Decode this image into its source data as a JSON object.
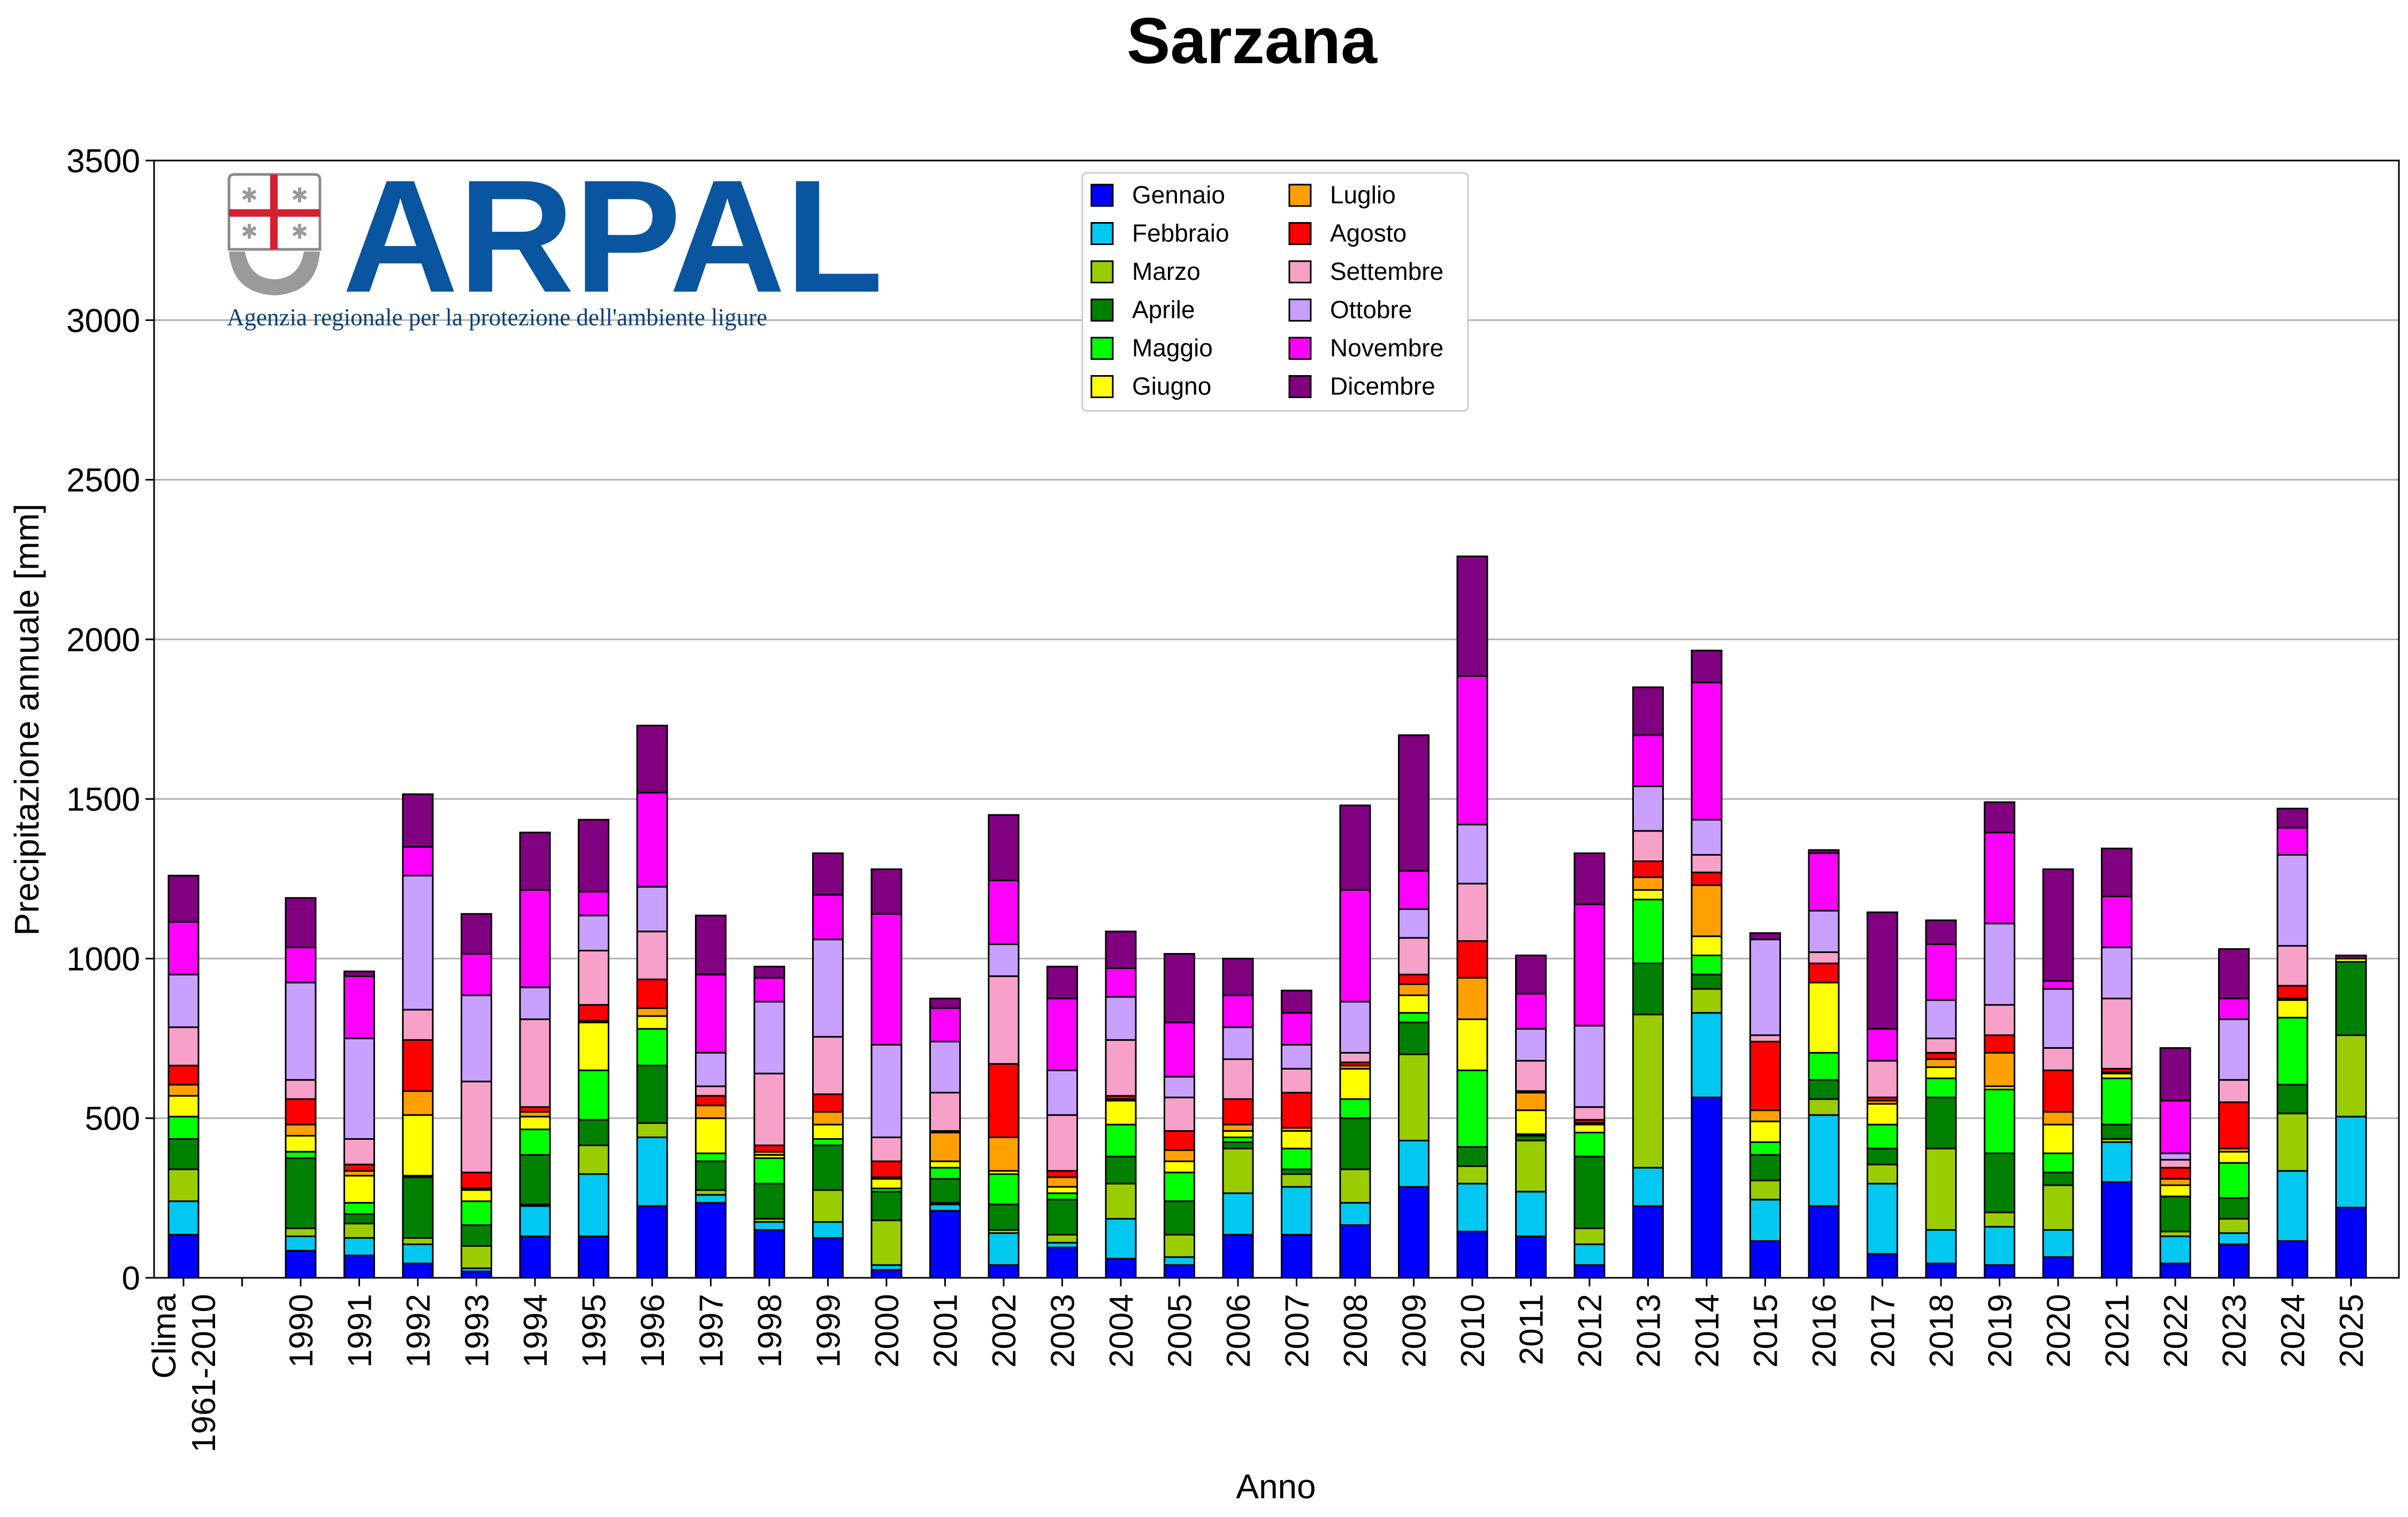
{
  "logo": {
    "word": "ARPAL",
    "subtitle": "Agenzia regionale per la protezione dell'ambiente ligure",
    "color": "#0a55a0"
  },
  "chart_data": {
    "type": "bar",
    "stacked": true,
    "title": "Sarzana",
    "xlabel": "Anno",
    "ylabel": "Precipitazione annuale [mm]",
    "ylim": [
      0,
      3500
    ],
    "yticks": [
      0,
      500,
      1000,
      1500,
      2000,
      2500,
      3000,
      3500
    ],
    "grid": "horizontal",
    "legend_position": "top-center",
    "categories": [
      "Clima\n1961-2010",
      "",
      "1990",
      "1991",
      "1992",
      "1993",
      "1994",
      "1995",
      "1996",
      "1997",
      "1998",
      "1999",
      "2000",
      "2001",
      "2002",
      "2003",
      "2004",
      "2005",
      "2006",
      "2007",
      "2008",
      "2009",
      "2010",
      "2011",
      "2012",
      "2013",
      "2014",
      "2015",
      "2016",
      "2017",
      "2018",
      "2019",
      "2020",
      "2021",
      "2022",
      "2023",
      "2024",
      "2025"
    ],
    "series": [
      {
        "name": "Gennaio",
        "color": "#0000ff",
        "values": [
          135,
          0,
          85,
          70,
          45,
          20,
          130,
          130,
          225,
          235,
          150,
          125,
          25,
          210,
          40,
          95,
          60,
          40,
          135,
          135,
          165,
          285,
          145,
          130,
          40,
          225,
          565,
          115,
          225,
          75,
          45,
          40,
          65,
          300,
          45,
          105,
          115,
          220
        ]
      },
      {
        "name": "Febbraio",
        "color": "#00c8f0",
        "values": [
          105,
          0,
          45,
          55,
          60,
          10,
          95,
          195,
          215,
          25,
          25,
          50,
          15,
          20,
          100,
          15,
          125,
          25,
          130,
          150,
          70,
          145,
          150,
          140,
          65,
          120,
          265,
          130,
          285,
          220,
          105,
          120,
          85,
          125,
          85,
          35,
          220,
          285
        ]
      },
      {
        "name": "Marzo",
        "color": "#9acd00",
        "values": [
          100,
          0,
          25,
          45,
          20,
          70,
          5,
          90,
          45,
          15,
          10,
          100,
          140,
          5,
          10,
          25,
          110,
          70,
          140,
          40,
          105,
          270,
          55,
          160,
          50,
          480,
          75,
          60,
          50,
          60,
          255,
          45,
          140,
          10,
          15,
          45,
          180,
          255
        ]
      },
      {
        "name": "Aprile",
        "color": "#008000",
        "values": [
          95,
          0,
          220,
          30,
          190,
          65,
          155,
          80,
          180,
          90,
          110,
          140,
          90,
          75,
          80,
          110,
          85,
          105,
          20,
          15,
          160,
          100,
          60,
          15,
          225,
          160,
          45,
          80,
          60,
          50,
          160,
          185,
          40,
          45,
          110,
          65,
          90,
          230
        ]
      },
      {
        "name": "Maggio",
        "color": "#00ff00",
        "values": [
          70,
          0,
          20,
          35,
          5,
          75,
          80,
          155,
          115,
          25,
          80,
          20,
          10,
          35,
          95,
          20,
          100,
          90,
          15,
          65,
          60,
          30,
          240,
          5,
          75,
          200,
          60,
          40,
          85,
          75,
          60,
          200,
          60,
          145,
          0,
          110,
          210,
          0
        ]
      },
      {
        "name": "Giugno",
        "color": "#ffff00",
        "values": [
          65,
          0,
          50,
          85,
          190,
          35,
          40,
          150,
          40,
          110,
          10,
          45,
          30,
          20,
          10,
          20,
          75,
          35,
          20,
          55,
          95,
          55,
          160,
          75,
          25,
          30,
          60,
          65,
          220,
          65,
          35,
          10,
          90,
          15,
          35,
          35,
          55,
          10
        ]
      },
      {
        "name": "Luglio",
        "color": "#ffa000",
        "values": [
          35,
          0,
          35,
          15,
          75,
          5,
          15,
          5,
          25,
          40,
          10,
          40,
          5,
          90,
          105,
          30,
          5,
          35,
          20,
          10,
          10,
          35,
          130,
          55,
          5,
          40,
          160,
          35,
          0,
          10,
          25,
          105,
          40,
          5,
          20,
          10,
          5,
          0
        ]
      },
      {
        "name": "Agosto",
        "color": "#ff0000",
        "values": [
          60,
          0,
          80,
          20,
          160,
          50,
          15,
          50,
          90,
          30,
          20,
          55,
          50,
          5,
          230,
          20,
          10,
          60,
          80,
          110,
          10,
          30,
          115,
          5,
          10,
          50,
          40,
          215,
          60,
          10,
          20,
          55,
          130,
          10,
          35,
          145,
          40,
          0
        ]
      },
      {
        "name": "Settembre",
        "color": "#f7a0c8",
        "values": [
          120,
          0,
          60,
          80,
          95,
          285,
          275,
          170,
          150,
          30,
          225,
          180,
          75,
          120,
          275,
          175,
          175,
          105,
          125,
          75,
          30,
          115,
          180,
          95,
          40,
          95,
          55,
          20,
          35,
          115,
          45,
          95,
          70,
          220,
          25,
          70,
          125,
          0
        ]
      },
      {
        "name": "Ottobre",
        "color": "#c8a0ff",
        "values": [
          165,
          0,
          305,
          315,
          420,
          270,
          100,
          110,
          140,
          105,
          225,
          305,
          290,
          160,
          100,
          140,
          135,
          65,
          100,
          75,
          160,
          90,
          185,
          100,
          255,
          140,
          110,
          300,
          130,
          0,
          120,
          255,
          185,
          160,
          20,
          190,
          285,
          0
        ]
      },
      {
        "name": "Novembre",
        "color": "#ff00ff",
        "values": [
          165,
          0,
          110,
          195,
          90,
          130,
          305,
          75,
          295,
          245,
          75,
          140,
          410,
          105,
          200,
          225,
          90,
          170,
          100,
          100,
          350,
          120,
          465,
          110,
          380,
          160,
          430,
          0,
          180,
          100,
          175,
          285,
          25,
          160,
          165,
          65,
          85,
          0
        ]
      },
      {
        "name": "Dicembre",
        "color": "#800080",
        "values": [
          145,
          0,
          155,
          15,
          165,
          125,
          180,
          225,
          210,
          185,
          35,
          130,
          140,
          30,
          205,
          100,
          115,
          215,
          115,
          70,
          265,
          425,
          375,
          120,
          160,
          150,
          100,
          20,
          10,
          365,
          75,
          95,
          350,
          150,
          165,
          155,
          60,
          10
        ]
      }
    ]
  }
}
